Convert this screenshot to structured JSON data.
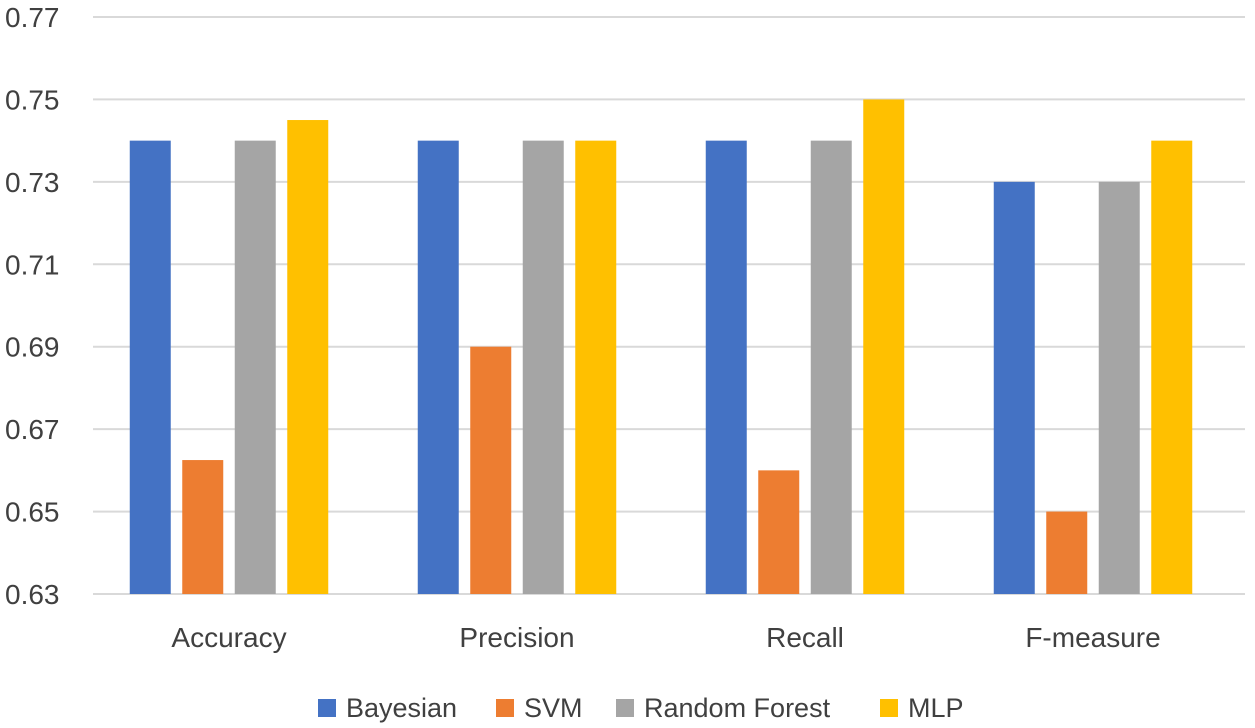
{
  "chart_data": {
    "type": "bar",
    "title": "",
    "xlabel": "",
    "ylabel": "",
    "categories": [
      "Accuracy",
      "Precision",
      "Recall",
      "F-measure"
    ],
    "series": [
      {
        "name": "Bayesian",
        "color": "#4472c4",
        "values": [
          0.74,
          0.74,
          0.74,
          0.73
        ]
      },
      {
        "name": "SVM",
        "color": "#ed7d31",
        "values": [
          0.6625,
          0.69,
          0.66,
          0.65
        ]
      },
      {
        "name": "Random Forest",
        "color": "#a5a5a5",
        "values": [
          0.74,
          0.74,
          0.74,
          0.73
        ]
      },
      {
        "name": "MLP",
        "color": "#ffc000",
        "values": [
          0.745,
          0.74,
          0.75,
          0.74
        ]
      }
    ],
    "ylim": [
      0.63,
      0.77
    ],
    "yticks": [
      "0.63",
      "0.65",
      "0.67",
      "0.69",
      "0.71",
      "0.73",
      "0.75",
      "0.77"
    ],
    "grid": true,
    "legend_position": "bottom"
  }
}
